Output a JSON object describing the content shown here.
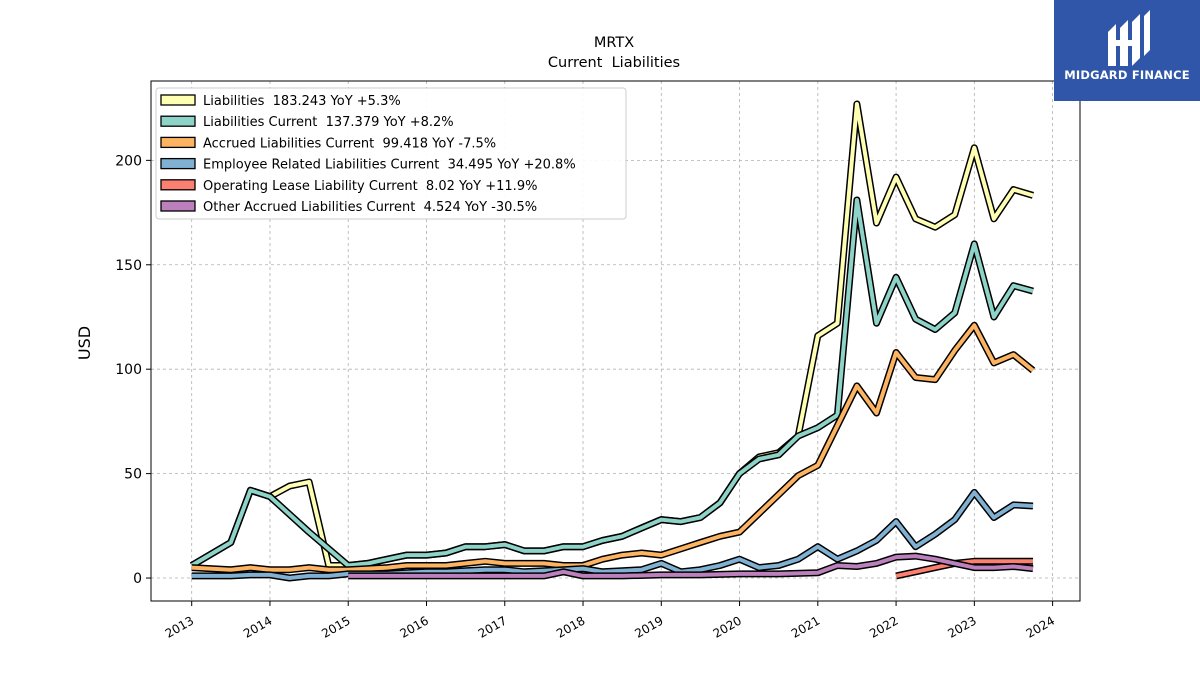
{
  "brand": {
    "name": "MIDGARD FINANCE",
    "bg_color": "#2f56a8"
  },
  "chart_data": {
    "type": "line",
    "title": "MRTX",
    "subtitle": "Current  Liabilities",
    "xlabel": "",
    "ylabel": "USD",
    "xlim": [
      2012.48,
      2024.35
    ],
    "ylim": [
      -11,
      238
    ],
    "x_ticks": [
      "2013",
      "2014",
      "2015",
      "2016",
      "2017",
      "2018",
      "2019",
      "2020",
      "2021",
      "2022",
      "2023",
      "2024"
    ],
    "y_ticks": [
      "0",
      "50",
      "100",
      "150",
      "200"
    ],
    "grid": true,
    "legend_position": "top-left",
    "series": [
      {
        "name": "Liabilities",
        "legend": "Liabilities  183.243 YoY +5.3%",
        "color": "#ffffb3",
        "points": [
          [
            2013.0,
            6
          ],
          [
            2013.5,
            17
          ],
          [
            2013.75,
            42
          ],
          [
            2014.0,
            39
          ],
          [
            2014.25,
            44
          ],
          [
            2014.5,
            46
          ],
          [
            2014.75,
            6
          ],
          [
            2015.0,
            6
          ],
          [
            2015.25,
            7
          ],
          [
            2015.5,
            9
          ],
          [
            2015.75,
            11
          ],
          [
            2016.0,
            11
          ],
          [
            2016.25,
            12
          ],
          [
            2016.5,
            15
          ],
          [
            2016.75,
            15
          ],
          [
            2017.0,
            16
          ],
          [
            2017.25,
            13
          ],
          [
            2017.5,
            13
          ],
          [
            2017.75,
            15
          ],
          [
            2018.0,
            15
          ],
          [
            2018.25,
            18
          ],
          [
            2018.5,
            20
          ],
          [
            2018.75,
            24
          ],
          [
            2019.0,
            28
          ],
          [
            2019.25,
            27
          ],
          [
            2019.5,
            29
          ],
          [
            2019.75,
            36
          ],
          [
            2020.0,
            50
          ],
          [
            2020.25,
            58
          ],
          [
            2020.5,
            60
          ],
          [
            2020.75,
            68
          ],
          [
            2021.0,
            116
          ],
          [
            2021.25,
            122
          ],
          [
            2021.5,
            227
          ],
          [
            2021.75,
            170
          ],
          [
            2022.0,
            192
          ],
          [
            2022.25,
            172
          ],
          [
            2022.5,
            168
          ],
          [
            2022.75,
            174
          ],
          [
            2023.0,
            206
          ],
          [
            2023.25,
            172
          ],
          [
            2023.5,
            186
          ],
          [
            2023.75,
            183.243
          ]
        ]
      },
      {
        "name": "Liabilities Current",
        "legend": "Liabilities Current  137.379 YoY +8.2%",
        "color": "#8dd3c7",
        "points": [
          [
            2013.0,
            6
          ],
          [
            2013.5,
            17
          ],
          [
            2013.75,
            42
          ],
          [
            2014.0,
            39
          ],
          [
            2014.5,
            22
          ],
          [
            2015.0,
            6
          ],
          [
            2015.25,
            7
          ],
          [
            2015.5,
            9
          ],
          [
            2015.75,
            11
          ],
          [
            2016.0,
            11
          ],
          [
            2016.25,
            12
          ],
          [
            2016.5,
            15
          ],
          [
            2016.75,
            15
          ],
          [
            2017.0,
            16
          ],
          [
            2017.25,
            13
          ],
          [
            2017.5,
            13
          ],
          [
            2017.75,
            15
          ],
          [
            2018.0,
            15
          ],
          [
            2018.25,
            18
          ],
          [
            2018.5,
            20
          ],
          [
            2018.75,
            24
          ],
          [
            2019.0,
            28
          ],
          [
            2019.25,
            27
          ],
          [
            2019.5,
            29
          ],
          [
            2019.75,
            36
          ],
          [
            2020.0,
            50
          ],
          [
            2020.25,
            57
          ],
          [
            2020.5,
            59
          ],
          [
            2020.75,
            68
          ],
          [
            2021.0,
            72
          ],
          [
            2021.25,
            78
          ],
          [
            2021.5,
            181
          ],
          [
            2021.75,
            122
          ],
          [
            2022.0,
            144
          ],
          [
            2022.25,
            124
          ],
          [
            2022.5,
            119
          ],
          [
            2022.75,
            127
          ],
          [
            2023.0,
            160
          ],
          [
            2023.25,
            125
          ],
          [
            2023.5,
            140
          ],
          [
            2023.75,
            137.379
          ]
        ]
      },
      {
        "name": "Accrued Liabilities Current",
        "legend": "Accrued Liabilities Current  99.418 YoY -7.5%",
        "color": "#fdb462",
        "points": [
          [
            2013.0,
            5
          ],
          [
            2013.5,
            4
          ],
          [
            2013.75,
            5
          ],
          [
            2014.0,
            4
          ],
          [
            2014.25,
            4
          ],
          [
            2014.5,
            5
          ],
          [
            2014.75,
            4
          ],
          [
            2015.0,
            4
          ],
          [
            2015.5,
            5
          ],
          [
            2015.75,
            6
          ],
          [
            2016.0,
            6
          ],
          [
            2016.25,
            6
          ],
          [
            2016.5,
            7
          ],
          [
            2016.75,
            8
          ],
          [
            2017.0,
            7
          ],
          [
            2017.25,
            7
          ],
          [
            2017.5,
            7
          ],
          [
            2017.75,
            6
          ],
          [
            2018.0,
            6
          ],
          [
            2018.25,
            9
          ],
          [
            2018.5,
            11
          ],
          [
            2018.75,
            12
          ],
          [
            2019.0,
            11
          ],
          [
            2019.25,
            14
          ],
          [
            2019.5,
            17
          ],
          [
            2019.75,
            20
          ],
          [
            2020.0,
            22
          ],
          [
            2020.25,
            31
          ],
          [
            2020.5,
            40
          ],
          [
            2020.75,
            49
          ],
          [
            2021.0,
            54
          ],
          [
            2021.25,
            73
          ],
          [
            2021.5,
            92
          ],
          [
            2021.75,
            79
          ],
          [
            2022.0,
            108
          ],
          [
            2022.25,
            96
          ],
          [
            2022.5,
            95
          ],
          [
            2022.75,
            109
          ],
          [
            2023.0,
            121
          ],
          [
            2023.25,
            103
          ],
          [
            2023.5,
            107
          ],
          [
            2023.75,
            99.418
          ]
        ]
      },
      {
        "name": "Employee Related Liabilities Current",
        "legend": "Employee Related Liabilities Current  34.495 YoY +20.8%",
        "color": "#80b1d3",
        "points": [
          [
            2013.0,
            1
          ],
          [
            2013.5,
            1
          ],
          [
            2013.75,
            1.5
          ],
          [
            2014.0,
            1.5
          ],
          [
            2014.25,
            0
          ],
          [
            2014.5,
            1
          ],
          [
            2014.75,
            1
          ],
          [
            2015.0,
            2
          ],
          [
            2015.25,
            2
          ],
          [
            2015.5,
            2
          ],
          [
            2015.75,
            2.5
          ],
          [
            2016.0,
            3
          ],
          [
            2016.25,
            3
          ],
          [
            2016.5,
            3.5
          ],
          [
            2016.75,
            4
          ],
          [
            2017.0,
            4
          ],
          [
            2017.25,
            3
          ],
          [
            2017.5,
            3.5
          ],
          [
            2017.75,
            4
          ],
          [
            2018.0,
            4.5
          ],
          [
            2018.25,
            3
          ],
          [
            2018.5,
            3.5
          ],
          [
            2018.75,
            4
          ],
          [
            2019.0,
            7
          ],
          [
            2019.25,
            3
          ],
          [
            2019.5,
            4
          ],
          [
            2019.75,
            6
          ],
          [
            2020.0,
            9
          ],
          [
            2020.25,
            5
          ],
          [
            2020.5,
            6
          ],
          [
            2020.75,
            9
          ],
          [
            2021.0,
            15
          ],
          [
            2021.25,
            9
          ],
          [
            2021.5,
            13
          ],
          [
            2021.75,
            18
          ],
          [
            2022.0,
            27
          ],
          [
            2022.25,
            15
          ],
          [
            2022.5,
            21
          ],
          [
            2022.75,
            28
          ],
          [
            2023.0,
            41
          ],
          [
            2023.25,
            29
          ],
          [
            2023.5,
            35
          ],
          [
            2023.75,
            34.495
          ]
        ]
      },
      {
        "name": "Operating Lease Liability Current",
        "legend": "Operating Lease Liability Current  8.02 YoY +11.9%",
        "color": "#fb8072",
        "points": [
          [
            2022.0,
            1
          ],
          [
            2022.25,
            3
          ],
          [
            2022.5,
            5
          ],
          [
            2022.75,
            7
          ],
          [
            2023.0,
            8
          ],
          [
            2023.25,
            8
          ],
          [
            2023.5,
            8
          ],
          [
            2023.75,
            8.02
          ]
        ]
      },
      {
        "name": "Other Accrued Liabilities Current",
        "legend": "Other Accrued Liabilities Current  4.524 YoY -30.5%",
        "color": "#bc80bd",
        "points": [
          [
            2015.0,
            1
          ],
          [
            2015.5,
            1
          ],
          [
            2016.0,
            1
          ],
          [
            2016.5,
            1
          ],
          [
            2017.0,
            1
          ],
          [
            2017.5,
            1
          ],
          [
            2017.75,
            3
          ],
          [
            2018.0,
            1
          ],
          [
            2018.5,
            1
          ],
          [
            2019.0,
            1.5
          ],
          [
            2019.5,
            1.5
          ],
          [
            2020.0,
            2
          ],
          [
            2020.5,
            2
          ],
          [
            2021.0,
            2.5
          ],
          [
            2021.25,
            6
          ],
          [
            2021.5,
            5.5
          ],
          [
            2021.75,
            7
          ],
          [
            2022.0,
            10
          ],
          [
            2022.25,
            10.5
          ],
          [
            2022.5,
            9
          ],
          [
            2022.75,
            7
          ],
          [
            2023.0,
            5
          ],
          [
            2023.25,
            5
          ],
          [
            2023.5,
            5.5
          ],
          [
            2023.75,
            4.524
          ]
        ]
      }
    ]
  }
}
